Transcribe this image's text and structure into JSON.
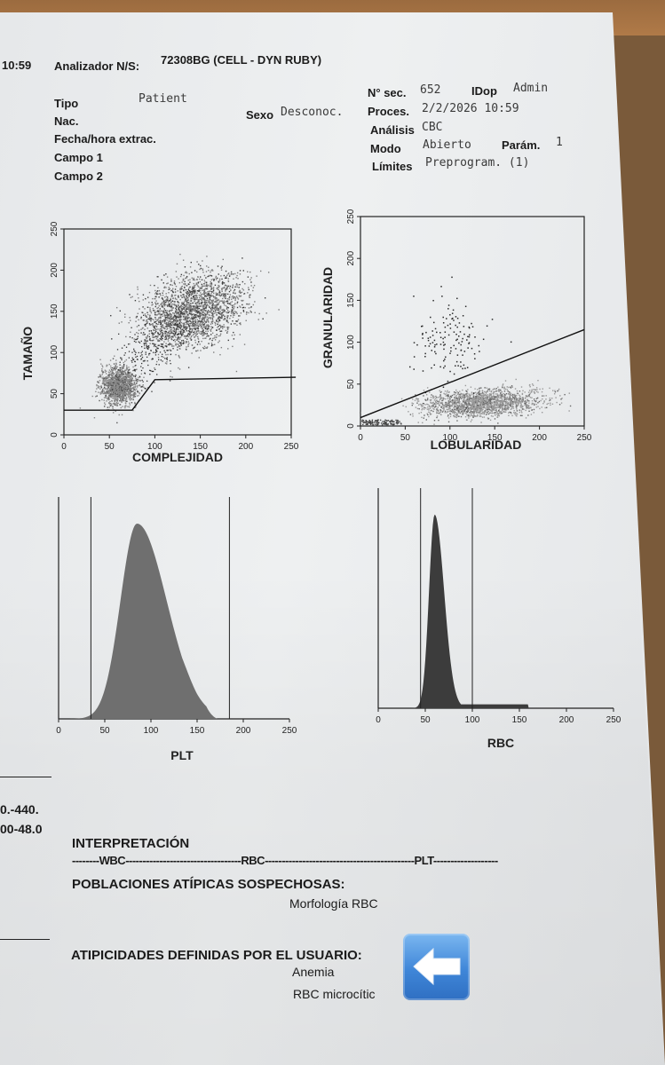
{
  "header": {
    "time": "10:59",
    "analyzer_label": "Analizador N/S:",
    "analyzer_value": "72308BG (CELL - DYN RUBY)"
  },
  "patient": {
    "tipo_label": "Tipo",
    "tipo_value": "Patient",
    "nac_label": "Nac.",
    "fecha_label": "Fecha/hora extrac.",
    "campo1_label": "Campo 1",
    "campo2_label": "Campo 2",
    "sexo_label": "Sexo",
    "sexo_value": "Desconoc."
  },
  "run": {
    "nsec_label": "N° sec.",
    "nsec_value": "652",
    "idop_label": "IDop",
    "idop_value": "Admin",
    "proces_label": "Proces.",
    "proces_value": "2/2/2026 10:59",
    "analisis_label": "Análisis",
    "analisis_value": "CBC",
    "modo_label": "Modo",
    "modo_value": "Abierto",
    "param_label": "Parám.",
    "param_value": "1",
    "limites_label": "Límites",
    "limites_value": "Preprogram. (1)"
  },
  "plots": {
    "scatter1": {
      "xlabel": "COMPLEJIDAD",
      "ylabel": "TAMAÑO",
      "xticks": [
        "0",
        "50",
        "100",
        "150",
        "200",
        "250"
      ],
      "yticks": [
        "0",
        "50",
        "100",
        "150",
        "200",
        "250"
      ]
    },
    "scatter2": {
      "xlabel": "LOBULARIDAD",
      "ylabel": "GRANULARIDAD",
      "xticks": [
        "0",
        "50",
        "100",
        "150",
        "200",
        "250"
      ],
      "yticks": [
        "0",
        "50",
        "100",
        "150",
        "200",
        "250"
      ]
    },
    "plt": {
      "xlabel": "PLT",
      "xticks": [
        "0",
        "50",
        "100",
        "150",
        "200",
        "250"
      ]
    },
    "rbc": {
      "xlabel": "RBC",
      "xticks": [
        "0",
        "50",
        "100",
        "150",
        "200",
        "250"
      ]
    }
  },
  "chart_data": [
    {
      "type": "scatter",
      "xlabel": "COMPLEJIDAD",
      "ylabel": "TAMAÑO",
      "xlim": [
        0,
        250
      ],
      "ylim": [
        0,
        250
      ],
      "clusters": [
        {
          "center": [
            60,
            60
          ]
        },
        {
          "center": [
            140,
            150
          ]
        }
      ],
      "gate": [
        [
          0,
          30
        ],
        [
          75,
          30
        ],
        [
          100,
          67
        ],
        [
          255,
          70
        ]
      ]
    },
    {
      "type": "scatter",
      "xlabel": "LOBULARIDAD",
      "ylabel": "GRANULARIDAD",
      "xlim": [
        0,
        250
      ],
      "ylim": [
        0,
        250
      ],
      "clusters": [
        {
          "center": [
            135,
            28
          ]
        },
        {
          "center": [
            100,
            100
          ]
        }
      ],
      "gate": [
        [
          0,
          10
        ],
        [
          250,
          115
        ]
      ]
    },
    {
      "type": "area",
      "xlabel": "PLT",
      "xlim": [
        0,
        250
      ],
      "peak_x": 85,
      "markers": [
        35,
        185
      ]
    },
    {
      "type": "area",
      "xlabel": "RBC",
      "xlim": [
        0,
        250
      ],
      "peak_x": 60,
      "markers": [
        45,
        100
      ]
    }
  ],
  "left_cut": {
    "line1": "0.-440.",
    "line2": "00-48.0"
  },
  "interpretation": {
    "title": "INTERPRETACIÓN",
    "dashes_prefix": "--------",
    "wbc": "WBC",
    "dashes_mid1": "----------------------------------",
    "rbc": "RBC",
    "dashes_mid2": "--------------------------------------------",
    "plt": "PLT",
    "dashes_end": "-------------------",
    "suspected_title": "POBLACIONES ATÍPICAS SOSPECHOSAS:",
    "suspected_item": "Morfología RBC",
    "user_title": "ATIPICIDADES DEFINIDAS POR EL USUARIO:",
    "user_item1": "Anemia",
    "user_item2": "RBC microcític"
  },
  "icons": {
    "arrow": "left-arrow-icon"
  }
}
